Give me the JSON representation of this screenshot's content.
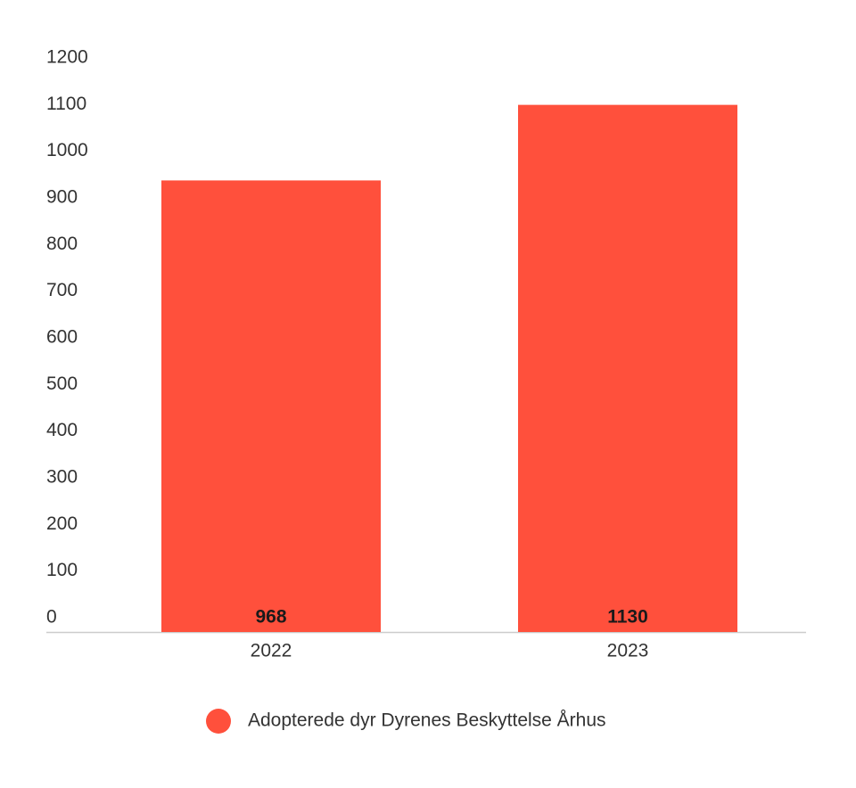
{
  "chart_data": {
    "type": "bar",
    "categories": [
      "2022",
      "2023"
    ],
    "series": [
      {
        "name": "Adopterede dyr Dyrenes Beskyttelse Århus",
        "color": "#ff503c",
        "values": [
          968,
          1130
        ]
      }
    ],
    "ylim": [
      0,
      1200
    ],
    "yticks": [
      0,
      100,
      200,
      300,
      400,
      500,
      600,
      700,
      800,
      900,
      1000,
      1100,
      1200
    ],
    "grid": false
  }
}
